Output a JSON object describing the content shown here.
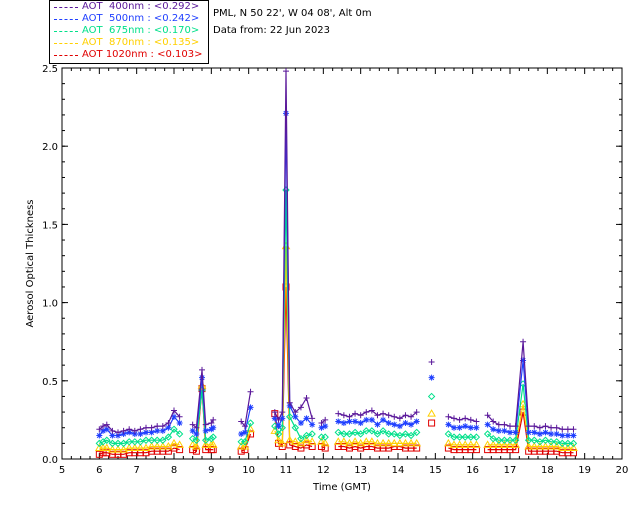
{
  "header": {
    "site": "PML, N 50 22', W 04 08', Alt 0m",
    "date": "Data from: 22 Jun 2023"
  },
  "legend": [
    {
      "label": "AOT  400nm : <0.292>",
      "color": "#5a189a"
    },
    {
      "label": "AOT  500nm : <0.242>",
      "color": "#1f3fff"
    },
    {
      "label": "AOT  675nm : <0.170>",
      "color": "#00e08a"
    },
    {
      "label": "AOT  870nm : <0.135>",
      "color": "#ffd000"
    },
    {
      "label": "AOT 1020nm : <0.103>",
      "color": "#e00000"
    }
  ],
  "chart_data": {
    "type": "line",
    "xlabel": "Time (GMT)",
    "ylabel": "Aerosol Optical Thickness",
    "xlim": [
      5,
      20
    ],
    "ylim": [
      0,
      2.5
    ],
    "xticks": [
      5,
      6,
      7,
      8,
      9,
      10,
      11,
      12,
      13,
      14,
      15,
      16,
      17,
      18,
      19,
      20
    ],
    "yticks": [
      0.0,
      0.5,
      1.0,
      1.5,
      2.0,
      2.5
    ],
    "x": [
      6.0,
      6.1,
      6.2,
      6.35,
      6.5,
      6.65,
      6.8,
      6.95,
      7.1,
      7.25,
      7.4,
      7.55,
      7.7,
      7.85,
      8.0,
      8.15,
      8.5,
      8.6,
      8.75,
      8.85,
      9.0,
      9.05,
      9.8,
      9.9,
      10.05,
      10.7,
      10.8,
      10.9,
      11.0,
      11.1,
      11.25,
      11.4,
      11.55,
      11.7,
      11.95,
      12.05,
      12.4,
      12.55,
      12.7,
      12.85,
      13.0,
      13.15,
      13.3,
      13.45,
      13.6,
      13.75,
      13.9,
      14.05,
      14.2,
      14.35,
      14.5,
      14.9,
      15.35,
      15.5,
      15.65,
      15.8,
      15.95,
      16.1,
      16.4,
      16.55,
      16.7,
      16.85,
      17.0,
      17.15,
      17.35,
      17.5,
      17.65,
      17.8,
      17.95,
      18.1,
      18.25,
      18.4,
      18.55,
      18.7
    ],
    "series": [
      {
        "name": "AOT  400nm",
        "marker": "plus",
        "values": [
          0.19,
          0.21,
          0.22,
          0.18,
          0.17,
          0.18,
          0.19,
          0.18,
          0.19,
          0.2,
          0.2,
          0.21,
          0.21,
          0.23,
          0.31,
          0.27,
          0.22,
          0.2,
          0.57,
          0.22,
          0.23,
          0.25,
          0.24,
          0.21,
          0.43,
          0.3,
          0.25,
          0.3,
          2.48,
          0.36,
          0.3,
          0.33,
          0.39,
          0.26,
          0.23,
          0.25,
          0.29,
          0.28,
          0.27,
          0.29,
          0.28,
          0.3,
          0.31,
          0.28,
          0.29,
          0.28,
          0.27,
          0.26,
          0.28,
          0.27,
          0.3,
          0.62,
          0.27,
          0.26,
          0.25,
          0.26,
          0.25,
          0.24,
          0.28,
          0.24,
          0.22,
          0.22,
          0.21,
          0.21,
          0.75,
          0.21,
          0.21,
          0.2,
          0.21,
          0.2,
          0.2,
          0.19,
          0.19,
          0.19
        ]
      },
      {
        "name": "AOT  500nm",
        "marker": "star",
        "values": [
          0.15,
          0.18,
          0.19,
          0.15,
          0.15,
          0.16,
          0.17,
          0.16,
          0.16,
          0.17,
          0.17,
          0.18,
          0.18,
          0.2,
          0.27,
          0.23,
          0.18,
          0.16,
          0.52,
          0.18,
          0.19,
          0.2,
          0.16,
          0.17,
          0.33,
          0.26,
          0.21,
          0.26,
          2.21,
          0.34,
          0.27,
          0.23,
          0.26,
          0.22,
          0.2,
          0.21,
          0.24,
          0.23,
          0.24,
          0.24,
          0.23,
          0.25,
          0.25,
          0.22,
          0.25,
          0.23,
          0.22,
          0.21,
          0.23,
          0.22,
          0.24,
          0.52,
          0.22,
          0.2,
          0.2,
          0.21,
          0.2,
          0.2,
          0.22,
          0.19,
          0.18,
          0.18,
          0.17,
          0.17,
          0.63,
          0.17,
          0.17,
          0.16,
          0.17,
          0.16,
          0.16,
          0.15,
          0.15,
          0.15
        ]
      },
      {
        "name": "AOT  675nm",
        "marker": "diamond",
        "values": [
          0.1,
          0.11,
          0.12,
          0.1,
          0.1,
          0.1,
          0.11,
          0.11,
          0.11,
          0.12,
          0.12,
          0.12,
          0.12,
          0.14,
          0.19,
          0.16,
          0.13,
          0.12,
          0.44,
          0.12,
          0.13,
          0.14,
          0.11,
          0.11,
          0.23,
          0.21,
          0.16,
          0.2,
          1.72,
          0.27,
          0.2,
          0.13,
          0.15,
          0.16,
          0.14,
          0.14,
          0.17,
          0.16,
          0.16,
          0.17,
          0.16,
          0.18,
          0.18,
          0.16,
          0.18,
          0.16,
          0.16,
          0.15,
          0.16,
          0.15,
          0.17,
          0.4,
          0.16,
          0.14,
          0.14,
          0.14,
          0.14,
          0.14,
          0.16,
          0.13,
          0.12,
          0.12,
          0.12,
          0.12,
          0.48,
          0.12,
          0.12,
          0.11,
          0.12,
          0.11,
          0.11,
          0.1,
          0.1,
          0.1
        ]
      },
      {
        "name": "AOT  870nm",
        "marker": "triangle",
        "values": [
          0.07,
          0.07,
          0.07,
          0.06,
          0.06,
          0.06,
          0.07,
          0.07,
          0.07,
          0.07,
          0.08,
          0.08,
          0.08,
          0.08,
          0.1,
          0.09,
          0.09,
          0.08,
          0.47,
          0.09,
          0.09,
          0.09,
          0.08,
          0.08,
          0.19,
          0.18,
          0.12,
          0.1,
          1.36,
          0.12,
          0.11,
          0.1,
          0.12,
          0.11,
          0.11,
          0.1,
          0.11,
          0.11,
          0.1,
          0.11,
          0.1,
          0.11,
          0.11,
          0.1,
          0.1,
          0.1,
          0.1,
          0.1,
          0.1,
          0.1,
          0.1,
          0.29,
          0.1,
          0.09,
          0.09,
          0.09,
          0.09,
          0.09,
          0.09,
          0.09,
          0.09,
          0.09,
          0.09,
          0.09,
          0.35,
          0.08,
          0.08,
          0.08,
          0.08,
          0.08,
          0.08,
          0.07,
          0.07,
          0.07
        ]
      },
      {
        "name": "AOT 1020nm",
        "marker": "square",
        "values": [
          0.03,
          0.04,
          0.04,
          0.03,
          0.03,
          0.03,
          0.04,
          0.04,
          0.04,
          0.04,
          0.05,
          0.05,
          0.05,
          0.05,
          0.07,
          0.06,
          0.06,
          0.05,
          0.45,
          0.06,
          0.06,
          0.06,
          0.05,
          0.06,
          0.16,
          0.29,
          0.1,
          0.08,
          1.1,
          0.09,
          0.08,
          0.07,
          0.09,
          0.08,
          0.08,
          0.07,
          0.08,
          0.08,
          0.07,
          0.08,
          0.07,
          0.08,
          0.08,
          0.07,
          0.07,
          0.07,
          0.08,
          0.08,
          0.07,
          0.07,
          0.07,
          0.23,
          0.07,
          0.06,
          0.06,
          0.06,
          0.06,
          0.06,
          0.06,
          0.06,
          0.06,
          0.06,
          0.06,
          0.06,
          0.3,
          0.05,
          0.05,
          0.05,
          0.05,
          0.05,
          0.05,
          0.04,
          0.04,
          0.04
        ]
      }
    ],
    "gaps_after_x": [
      8.15,
      9.05,
      10.05,
      11.7,
      12.05,
      14.5,
      14.9,
      16.1
    ]
  }
}
